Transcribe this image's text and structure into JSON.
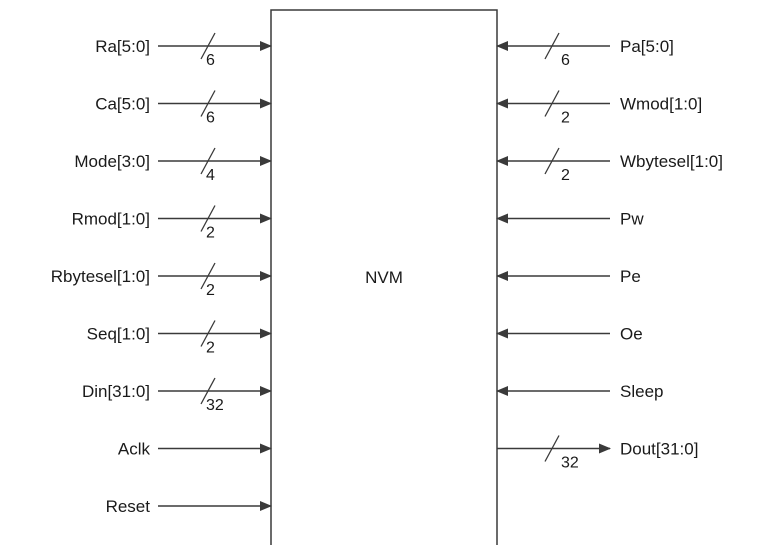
{
  "block": {
    "label": "NVM"
  },
  "inputs_left": [
    {
      "name": "Ra[5:0]",
      "width": "6"
    },
    {
      "name": "Ca[5:0]",
      "width": "6"
    },
    {
      "name": "Mode[3:0]",
      "width": "4"
    },
    {
      "name": "Rmod[1:0]",
      "width": "2"
    },
    {
      "name": "Rbytesel[1:0]",
      "width": "2"
    },
    {
      "name": "Seq[1:0]",
      "width": "2"
    },
    {
      "name": "Din[31:0]",
      "width": "32"
    },
    {
      "name": "Aclk",
      "width": ""
    },
    {
      "name": "Reset",
      "width": ""
    }
  ],
  "inputs_right": [
    {
      "name": "Pa[5:0]",
      "width": "6"
    },
    {
      "name": "Wmod[1:0]",
      "width": "2"
    },
    {
      "name": "Wbytesel[1:0]",
      "width": "2"
    },
    {
      "name": "Pw",
      "width": ""
    },
    {
      "name": "Pe",
      "width": ""
    },
    {
      "name": "Oe",
      "width": ""
    },
    {
      "name": "Sleep",
      "width": ""
    }
  ],
  "outputs_right": [
    {
      "name": "Dout[31:0]",
      "width": "32"
    }
  ]
}
